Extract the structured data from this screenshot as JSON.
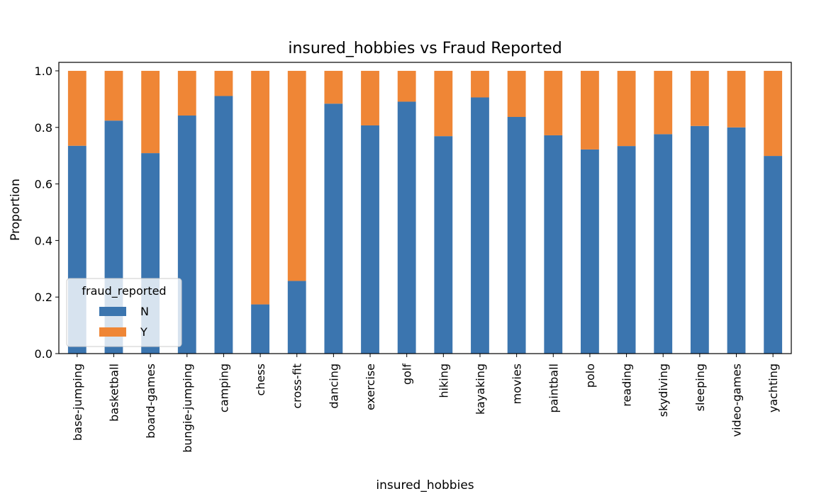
{
  "chart_data": {
    "type": "bar",
    "stacked": true,
    "title": "insured_hobbies vs Fraud Reported",
    "xlabel": "insured_hobbies",
    "ylabel": "Proportion",
    "ylim": [
      0,
      1.03
    ],
    "yticks": [
      "0.0",
      "0.2",
      "0.4",
      "0.6",
      "0.8",
      "1.0"
    ],
    "ytick_values": [
      0.0,
      0.2,
      0.4,
      0.6,
      0.8,
      1.0
    ],
    "grid": false,
    "legend": {
      "title": "fraud_reported",
      "placement": "lower-left"
    },
    "categories": [
      "base-jumping",
      "basketball",
      "board-games",
      "bungie-jumping",
      "camping",
      "chess",
      "cross-fit",
      "dancing",
      "exercise",
      "golf",
      "hiking",
      "kayaking",
      "movies",
      "paintball",
      "polo",
      "reading",
      "skydiving",
      "sleeping",
      "video-games",
      "yachting"
    ],
    "series": [
      {
        "name": "N",
        "color": "#3b75af",
        "values": [
          0.735,
          0.824,
          0.709,
          0.842,
          0.911,
          0.174,
          0.257,
          0.884,
          0.807,
          0.891,
          0.769,
          0.906,
          0.837,
          0.772,
          0.722,
          0.734,
          0.776,
          0.805,
          0.8,
          0.699
        ]
      },
      {
        "name": "Y",
        "color": "#ef8636",
        "values": [
          0.265,
          0.176,
          0.291,
          0.158,
          0.089,
          0.826,
          0.743,
          0.116,
          0.193,
          0.109,
          0.231,
          0.094,
          0.163,
          0.228,
          0.278,
          0.266,
          0.224,
          0.195,
          0.2,
          0.301
        ]
      }
    ]
  }
}
